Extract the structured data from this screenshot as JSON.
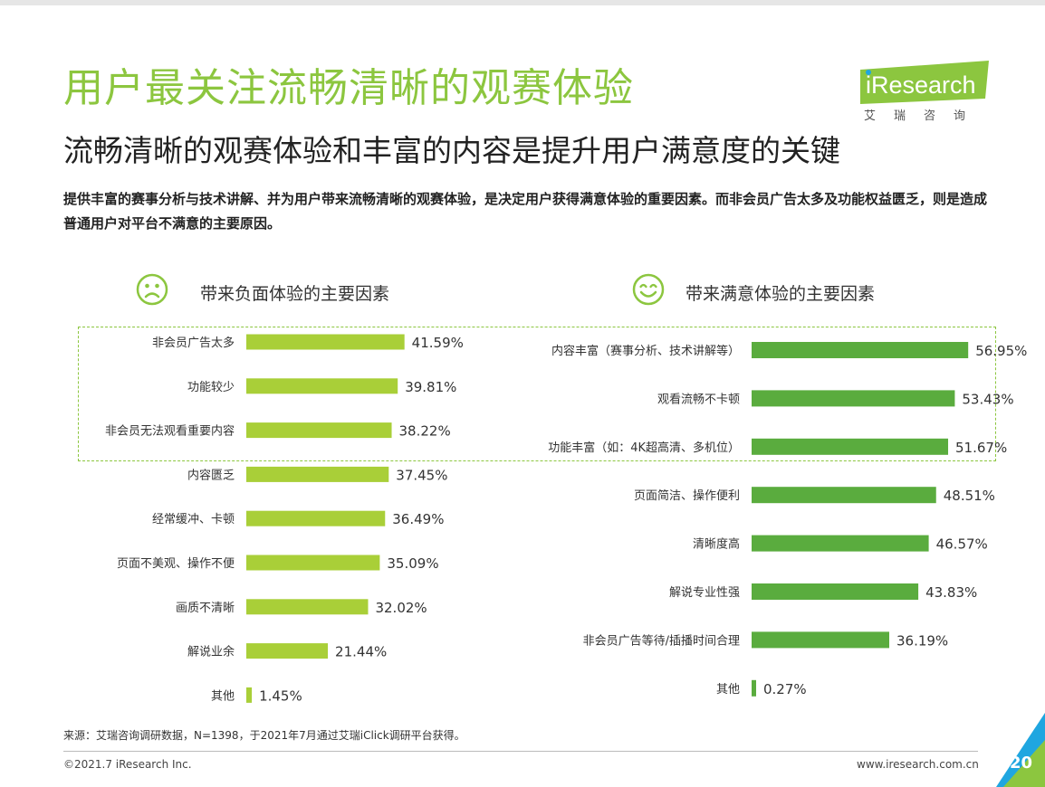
{
  "header": {
    "title": "用户最关注流畅清晰的观赛体验",
    "subtitle": "流畅清晰的观赛体验和丰富的内容是提升用户满意度的关键",
    "description": "提供丰富的赛事分析与技术讲解、并为用户带来流畅清晰的观赛体验，是决定用户获得满意体验的重要因素。而非会员广告太多及功能权益匮乏，则是造成普通用户对平台不满意的主要原因。"
  },
  "logo": {
    "text": "iResearch",
    "sub": "艾瑞咨询"
  },
  "panels": {
    "left_title": "带来负面体验的主要因素",
    "right_title": "带来满意体验的主要因素"
  },
  "chart_data": [
    {
      "type": "bar",
      "orientation": "horizontal",
      "title": "带来负面体验的主要因素",
      "categories": [
        "非会员广告太多",
        "功能较少",
        "非会员无法观看重要内容",
        "内容匮乏",
        "经常缓冲、卡顿",
        "页面不美观、操作不便",
        "画质不清晰",
        "解说业余",
        "其他"
      ],
      "values": [
        41.59,
        39.81,
        38.22,
        37.45,
        36.49,
        35.09,
        32.02,
        21.44,
        1.45
      ],
      "labels": [
        "41.59%",
        "39.81%",
        "38.22%",
        "37.45%",
        "36.49%",
        "35.09%",
        "32.02%",
        "21.44%",
        "1.45%"
      ],
      "unit": "%",
      "highlighted_top": 3,
      "color": "#a9cf38"
    },
    {
      "type": "bar",
      "orientation": "horizontal",
      "title": "带来满意体验的主要因素",
      "categories": [
        "内容丰富（赛事分析、技术讲解等）",
        "观看流畅不卡顿",
        "功能丰富（如：4K超高清、多机位）",
        "页面简洁、操作便利",
        "清晰度高",
        "解说专业性强",
        "非会员广告等待/插播时间合理",
        "其他"
      ],
      "values": [
        56.95,
        53.43,
        51.67,
        48.51,
        46.57,
        43.83,
        36.19,
        0.27
      ],
      "labels": [
        "56.95%",
        "53.43%",
        "51.67%",
        "48.51%",
        "46.57%",
        "43.83%",
        "36.19%",
        "0.27%"
      ],
      "unit": "%",
      "highlighted_top": 3,
      "color": "#5aac3e"
    }
  ],
  "footer": {
    "source": "来源：艾瑞咨询调研数据，N=1398，于2021年7月通过艾瑞iClick调研平台获得。",
    "copyright": "©2021.7 iResearch Inc.",
    "website": "www.iresearch.com.cn",
    "page": "20"
  },
  "colors": {
    "title_green": "#8cc63f",
    "left_bar": "#a9cf38",
    "right_bar": "#5aac3e",
    "corner_blue": "#1fa6e0"
  }
}
